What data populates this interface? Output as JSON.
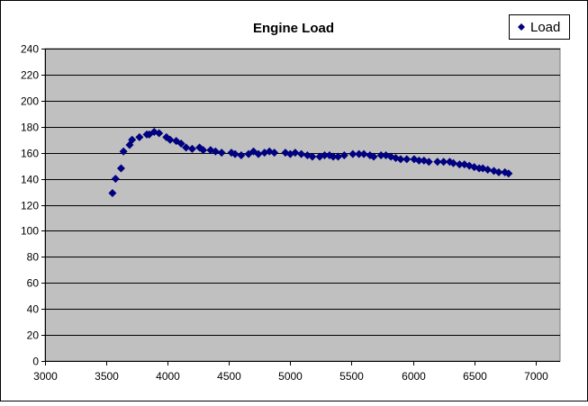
{
  "chart_data": {
    "type": "scatter",
    "title": "Engine Load",
    "xlabel": "",
    "ylabel": "",
    "xlim": [
      3000,
      7200
    ],
    "ylim": [
      0,
      240
    ],
    "xticks": [
      3000,
      3500,
      4000,
      4500,
      5000,
      5500,
      6000,
      6500,
      7000
    ],
    "yticks": [
      0,
      20,
      40,
      60,
      80,
      100,
      120,
      140,
      160,
      180,
      200,
      220,
      240
    ],
    "grid": "horizontal",
    "legend_position": "top-right",
    "series": [
      {
        "name": "Load",
        "color": "#000080",
        "marker": "diamond",
        "points": [
          [
            3550,
            129
          ],
          [
            3575,
            140
          ],
          [
            3620,
            148
          ],
          [
            3640,
            161
          ],
          [
            3690,
            166
          ],
          [
            3710,
            170
          ],
          [
            3770,
            172
          ],
          [
            3830,
            174
          ],
          [
            3850,
            174
          ],
          [
            3890,
            176
          ],
          [
            3930,
            175
          ],
          [
            3990,
            172
          ],
          [
            4020,
            170
          ],
          [
            4070,
            169
          ],
          [
            4110,
            167
          ],
          [
            4150,
            164
          ],
          [
            4200,
            163
          ],
          [
            4260,
            164
          ],
          [
            4290,
            162
          ],
          [
            4350,
            162
          ],
          [
            4390,
            161
          ],
          [
            4440,
            160
          ],
          [
            4520,
            160
          ],
          [
            4550,
            159
          ],
          [
            4600,
            158
          ],
          [
            4660,
            159
          ],
          [
            4700,
            161
          ],
          [
            4740,
            159
          ],
          [
            4790,
            160
          ],
          [
            4830,
            161
          ],
          [
            4870,
            160
          ],
          [
            4960,
            160
          ],
          [
            5000,
            159
          ],
          [
            5040,
            160
          ],
          [
            5090,
            159
          ],
          [
            5140,
            158
          ],
          [
            5180,
            157
          ],
          [
            5240,
            157
          ],
          [
            5280,
            158
          ],
          [
            5320,
            158
          ],
          [
            5350,
            157
          ],
          [
            5390,
            157
          ],
          [
            5440,
            158
          ],
          [
            5510,
            159
          ],
          [
            5560,
            159
          ],
          [
            5600,
            159
          ],
          [
            5650,
            158
          ],
          [
            5680,
            157
          ],
          [
            5740,
            158
          ],
          [
            5780,
            158
          ],
          [
            5820,
            157
          ],
          [
            5860,
            156
          ],
          [
            5900,
            155
          ],
          [
            5950,
            155
          ],
          [
            6010,
            155
          ],
          [
            6050,
            154
          ],
          [
            6090,
            154
          ],
          [
            6130,
            153
          ],
          [
            6200,
            153
          ],
          [
            6250,
            153
          ],
          [
            6300,
            153
          ],
          [
            6330,
            152
          ],
          [
            6380,
            151
          ],
          [
            6420,
            151
          ],
          [
            6460,
            150
          ],
          [
            6500,
            149
          ],
          [
            6540,
            148
          ],
          [
            6570,
            148
          ],
          [
            6610,
            147
          ],
          [
            6660,
            146
          ],
          [
            6700,
            145
          ],
          [
            6750,
            145
          ],
          [
            6780,
            144
          ]
        ]
      }
    ]
  }
}
